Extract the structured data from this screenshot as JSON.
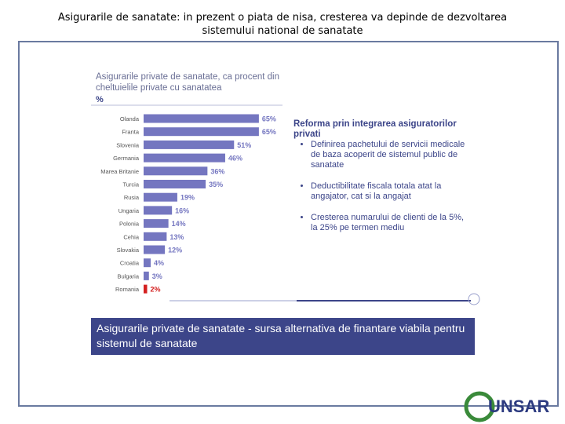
{
  "slide_title": "Asigurarile de sanatate: in prezent o piata de nisa, cresterea va depinde de dezvoltarea sistemului national de sanatate",
  "chart_data": {
    "type": "bar",
    "orientation": "horizontal",
    "title": "Asigurarile private de sanatate, ca procent din cheltuielile private cu sanatatea",
    "unit_label": "%",
    "categories": [
      "Olanda",
      "Franta",
      "Slovenia",
      "Germania",
      "Marea Britanie",
      "Turcia",
      "Rusia",
      "Ungaria",
      "Polonia",
      "Cehia",
      "Slovakia",
      "Croatia",
      "Bulgaria",
      "Romania"
    ],
    "values": [
      65,
      65,
      51,
      46,
      36,
      35,
      19,
      16,
      14,
      13,
      12,
      4,
      3,
      2
    ],
    "value_labels": [
      "65%",
      "65%",
      "51%",
      "46%",
      "36%",
      "35%",
      "19%",
      "16%",
      "14%",
      "13%",
      "12%",
      "4%",
      "3%",
      "2%"
    ],
    "colors": [
      "#7476c0",
      "#7476c0",
      "#7476c0",
      "#7476c0",
      "#7476c0",
      "#7476c0",
      "#7476c0",
      "#7476c0",
      "#7476c0",
      "#7476c0",
      "#7476c0",
      "#7476c0",
      "#7476c0",
      "#d42020"
    ]
  },
  "notes": {
    "title": "Reforma prin integrarea asiguratorilor privati",
    "bullets": [
      "Definirea pachetului de servicii medicale de baza acoperit de sistemul public de sanatate",
      "Deductibilitate fiscala totala atat la angajator, cat si la angajat",
      "Cresterea numarului de clienti de la 5%, la 25% pe termen mediu"
    ]
  },
  "banner": "Asigurarile private de sanatate - sursa alternativa de finantare viabila pentru sistemul de sanatate",
  "logo": "UNSAR"
}
